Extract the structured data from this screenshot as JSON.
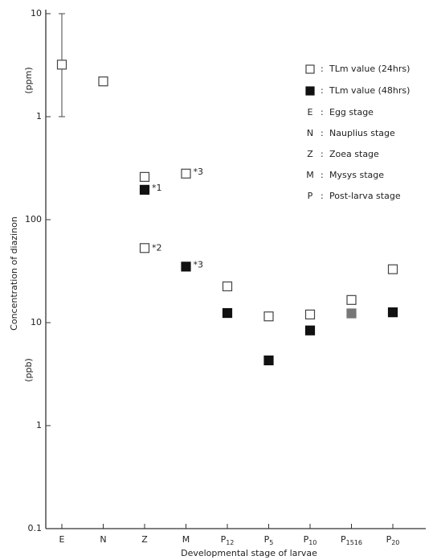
{
  "chart_data": {
    "type": "scatter",
    "y_unit_top": "(ppm)",
    "y_unit_bottom": "(ppb)",
    "ylabel": "Concentration of diazinon",
    "xlabel": "Developmental stage of larvae",
    "log_scale": true,
    "categories": [
      "E",
      "N",
      "Z",
      "M",
      "P12",
      "P5",
      "P10",
      "P1516",
      "P20"
    ],
    "ylim": [
      0.1,
      10000
    ],
    "yticks": [
      {
        "value": 10000,
        "label": "10"
      },
      {
        "value": 1000,
        "label": "1"
      },
      100,
      10,
      1,
      0.1
    ],
    "series": [
      {
        "name": "TLm value (24hrs)",
        "marker": "open",
        "color": "#444",
        "values": [
          3200,
          2200,
          260,
          280,
          22.5,
          11.5,
          12,
          16.6,
          33
        ],
        "error_low": [
          1000,
          null,
          null,
          null,
          null,
          null,
          null,
          null,
          null
        ],
        "error_high": [
          10000,
          null,
          null,
          null,
          null,
          null,
          null,
          null,
          null
        ]
      },
      {
        "name": "TLm value (48hrs)",
        "marker": "filled",
        "color": "#111",
        "values": [
          null,
          null,
          195,
          35,
          12.4,
          4.3,
          8.4,
          12.3,
          12.6
        ],
        "point_colors": [
          null,
          null,
          null,
          null,
          null,
          null,
          null,
          "#777",
          null
        ]
      }
    ],
    "extra_points": [
      {
        "series": 0,
        "category": 2,
        "value": 53,
        "label": "*2"
      }
    ],
    "annotations": [
      {
        "series": 1,
        "index": 2,
        "text": "*1"
      },
      {
        "series": 0,
        "index": 3,
        "text": "*3"
      },
      {
        "series": 1,
        "index": 3,
        "text": "*3"
      }
    ],
    "legend_separator": ":",
    "stage_legend": [
      {
        "key": "E",
        "text": "Egg stage"
      },
      {
        "key": "N",
        "text": "Nauplius stage"
      },
      {
        "key": "Z",
        "text": "Zoea stage"
      },
      {
        "key": "M",
        "text": "Mysys stage"
      },
      {
        "key": "P",
        "text": "Post-larva stage"
      }
    ]
  }
}
